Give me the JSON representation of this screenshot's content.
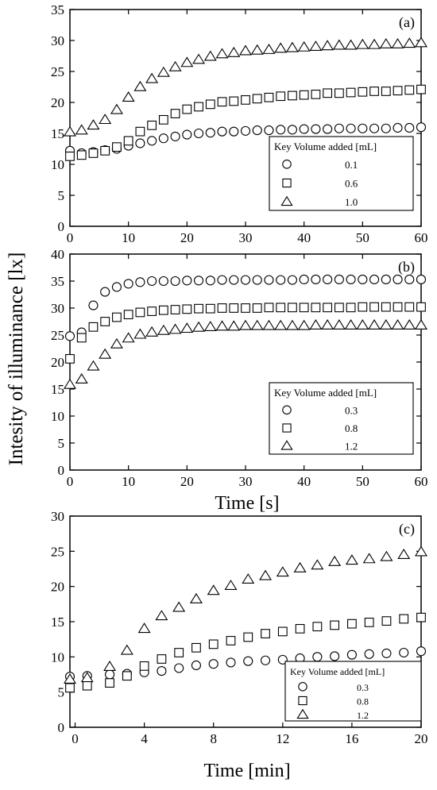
{
  "ylabel": "Intesity of illuminance [lx]",
  "chart_data": [
    {
      "type": "scatter",
      "panel_label": "(a)",
      "xlabel": "",
      "xlim": [
        0,
        60
      ],
      "ylim": [
        0,
        35
      ],
      "xticks": [
        0,
        10,
        20,
        30,
        40,
        50,
        60
      ],
      "yticks": [
        0,
        5,
        10,
        15,
        20,
        25,
        30,
        35
      ],
      "legend": {
        "header": "Key Volume added [mL]",
        "position": "bottom-right"
      },
      "series": [
        {
          "name": "0.1",
          "marker": "circle",
          "x": [
            0,
            2,
            4,
            6,
            8,
            10,
            12,
            14,
            16,
            18,
            20,
            22,
            24,
            26,
            28,
            30,
            32,
            34,
            36,
            38,
            40,
            42,
            44,
            46,
            48,
            50,
            52,
            54,
            56,
            58,
            60
          ],
          "y": [
            12.2,
            11.8,
            12.0,
            12.3,
            12.5,
            13.0,
            13.4,
            13.8,
            14.2,
            14.5,
            14.8,
            15.0,
            15.1,
            15.3,
            15.3,
            15.4,
            15.5,
            15.5,
            15.6,
            15.6,
            15.7,
            15.7,
            15.7,
            15.8,
            15.8,
            15.8,
            15.8,
            15.8,
            15.9,
            15.9,
            16.0
          ]
        },
        {
          "name": "0.6",
          "marker": "square",
          "x": [
            0,
            2,
            4,
            6,
            8,
            10,
            12,
            14,
            16,
            18,
            20,
            22,
            24,
            26,
            28,
            30,
            32,
            34,
            36,
            38,
            40,
            42,
            44,
            46,
            48,
            50,
            52,
            54,
            56,
            58,
            60
          ],
          "y": [
            11.3,
            11.5,
            11.8,
            12.2,
            12.8,
            13.8,
            15.3,
            16.3,
            17.2,
            18.2,
            18.9,
            19.3,
            19.7,
            20.1,
            20.2,
            20.4,
            20.6,
            20.8,
            21.0,
            21.1,
            21.2,
            21.3,
            21.5,
            21.5,
            21.6,
            21.7,
            21.8,
            21.8,
            21.9,
            22.0,
            22.1
          ]
        },
        {
          "name": "1.0",
          "marker": "triangle",
          "x": [
            0,
            2,
            4,
            6,
            8,
            10,
            12,
            14,
            16,
            18,
            20,
            22,
            24,
            26,
            28,
            30,
            32,
            34,
            36,
            38,
            40,
            42,
            44,
            46,
            48,
            50,
            52,
            54,
            56,
            58,
            60
          ],
          "y": [
            15.2,
            15.5,
            16.3,
            17.2,
            18.8,
            20.8,
            22.5,
            23.8,
            24.8,
            25.7,
            26.4,
            26.9,
            27.4,
            27.8,
            28.0,
            28.3,
            28.4,
            28.5,
            28.7,
            28.8,
            28.9,
            29.0,
            29.1,
            29.2,
            29.2,
            29.3,
            29.3,
            29.4,
            29.4,
            29.5,
            29.6
          ]
        }
      ]
    },
    {
      "type": "scatter",
      "panel_label": "(b)",
      "xlabel": "Time [s]",
      "xlim": [
        0,
        60
      ],
      "ylim": [
        0,
        40
      ],
      "xticks": [
        0,
        10,
        20,
        30,
        40,
        50,
        60
      ],
      "yticks": [
        0,
        5,
        10,
        15,
        20,
        25,
        30,
        35,
        40
      ],
      "legend": {
        "header": "Key Volume added [mL]",
        "position": "bottom-right"
      },
      "series": [
        {
          "name": "0.3",
          "marker": "circle",
          "x": [
            0,
            2,
            4,
            6,
            8,
            10,
            12,
            14,
            16,
            18,
            20,
            22,
            24,
            26,
            28,
            30,
            32,
            34,
            36,
            38,
            40,
            42,
            44,
            46,
            48,
            50,
            52,
            54,
            56,
            58,
            60
          ],
          "y": [
            24.8,
            25.5,
            30.5,
            33.0,
            33.9,
            34.5,
            34.8,
            35.0,
            35.0,
            35.0,
            35.1,
            35.1,
            35.1,
            35.2,
            35.2,
            35.2,
            35.2,
            35.2,
            35.2,
            35.2,
            35.3,
            35.3,
            35.3,
            35.3,
            35.3,
            35.3,
            35.3,
            35.3,
            35.3,
            35.3,
            35.3
          ]
        },
        {
          "name": "0.8",
          "marker": "square",
          "x": [
            0,
            2,
            4,
            6,
            8,
            10,
            12,
            14,
            16,
            18,
            20,
            22,
            24,
            26,
            28,
            30,
            32,
            34,
            36,
            38,
            40,
            42,
            44,
            46,
            48,
            50,
            52,
            54,
            56,
            58,
            60
          ],
          "y": [
            20.6,
            24.5,
            26.5,
            27.5,
            28.3,
            28.8,
            29.2,
            29.4,
            29.6,
            29.7,
            29.8,
            29.9,
            29.9,
            30.0,
            30.0,
            30.0,
            30.0,
            30.1,
            30.1,
            30.1,
            30.1,
            30.1,
            30.1,
            30.1,
            30.1,
            30.2,
            30.2,
            30.2,
            30.2,
            30.2,
            30.2
          ]
        },
        {
          "name": "1.2",
          "marker": "triangle",
          "x": [
            0,
            2,
            4,
            6,
            8,
            10,
            12,
            14,
            16,
            18,
            20,
            22,
            24,
            26,
            28,
            30,
            32,
            34,
            36,
            38,
            40,
            42,
            44,
            46,
            48,
            50,
            52,
            54,
            56,
            58,
            60
          ],
          "y": [
            15.8,
            16.8,
            19.2,
            21.4,
            23.3,
            24.4,
            25.1,
            25.5,
            25.8,
            26.0,
            26.2,
            26.4,
            26.5,
            26.6,
            26.6,
            26.7,
            26.7,
            26.7,
            26.7,
            26.7,
            26.7,
            26.8,
            26.8,
            26.8,
            26.8,
            26.8,
            26.8,
            26.8,
            26.8,
            26.8,
            26.8
          ]
        }
      ]
    },
    {
      "type": "scatter",
      "panel_label": "(c)",
      "xlabel": "Time [min]",
      "xlim": [
        -0.3,
        20
      ],
      "ylim": [
        0,
        30
      ],
      "xticks": [
        0,
        4,
        8,
        12,
        16,
        20
      ],
      "yticks": [
        0,
        5,
        10,
        15,
        20,
        25,
        30
      ],
      "legend": {
        "header": "Key  Volume added [mL]",
        "position": "bottom-right"
      },
      "series": [
        {
          "name": "0.3",
          "marker": "circle",
          "x": [
            -0.3,
            0.7,
            2,
            3,
            4,
            5,
            6,
            7,
            8,
            9,
            10,
            11,
            12,
            13,
            14,
            15,
            16,
            17,
            18,
            19,
            20
          ],
          "y": [
            7.2,
            7.3,
            7.5,
            7.6,
            7.8,
            8.0,
            8.4,
            8.8,
            9.0,
            9.2,
            9.4,
            9.5,
            9.6,
            9.8,
            10.0,
            10.1,
            10.3,
            10.4,
            10.5,
            10.6,
            10.8
          ]
        },
        {
          "name": "0.8",
          "marker": "square",
          "x": [
            -0.3,
            0.7,
            2,
            3,
            4,
            5,
            6,
            7,
            8,
            9,
            10,
            11,
            12,
            13,
            14,
            15,
            16,
            17,
            18,
            19,
            20
          ],
          "y": [
            5.6,
            5.9,
            6.3,
            7.3,
            8.7,
            9.7,
            10.6,
            11.3,
            11.8,
            12.3,
            12.8,
            13.3,
            13.6,
            14.0,
            14.3,
            14.5,
            14.7,
            14.9,
            15.1,
            15.4,
            15.6
          ]
        },
        {
          "name": "1.2",
          "marker": "triangle",
          "x": [
            -0.3,
            0.7,
            2,
            3,
            4,
            5,
            6,
            7,
            8,
            9,
            10,
            11,
            12,
            13,
            14,
            15,
            16,
            17,
            18,
            19,
            20
          ],
          "y": [
            6.8,
            7.0,
            8.6,
            10.9,
            14.0,
            15.8,
            17.0,
            18.2,
            19.4,
            20.1,
            21.0,
            21.5,
            22.0,
            22.6,
            23.0,
            23.5,
            23.7,
            23.9,
            24.2,
            24.5,
            24.9
          ]
        }
      ]
    }
  ]
}
